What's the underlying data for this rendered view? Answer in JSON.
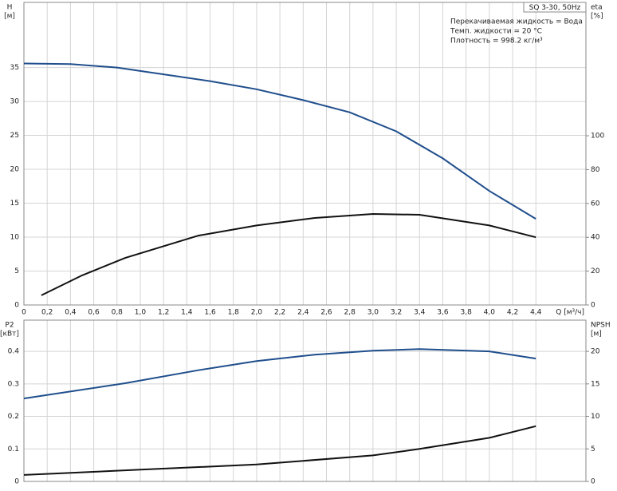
{
  "chart_data": [
    {
      "type": "line",
      "title": "SQ 3-30, 50Hz",
      "annotations": [
        "Перекачиваемая жидкость = Вода",
        "Темп. жидкости = 20 °C",
        "Плотность = 998.2 кг/м³"
      ],
      "ylabel": [
        "H",
        "[м]"
      ],
      "y2label": [
        "eta",
        "[%]"
      ],
      "xlabel": "Q [м³/ч]",
      "xlim": [
        0,
        4.83
      ],
      "ylim": [
        0,
        44.6
      ],
      "y2lim": [
        0,
        178.8
      ],
      "grid": true,
      "xticks": [
        0,
        {
          "value": 0.2,
          "label": "0,2"
        },
        {
          "value": 0.4,
          "label": "0,4"
        },
        {
          "value": 0.6,
          "label": "0,6"
        },
        {
          "value": 0.8,
          "label": "0,8"
        },
        {
          "value": 1.0,
          "label": "1,0"
        },
        {
          "value": 1.2,
          "label": "1,2"
        },
        {
          "value": 1.4,
          "label": "1,4"
        },
        {
          "value": 1.6,
          "label": "1,6"
        },
        {
          "value": 1.8,
          "label": "1,8"
        },
        {
          "value": 2.0,
          "label": "2,0"
        },
        {
          "value": 2.2,
          "label": "2,2"
        },
        {
          "value": 2.4,
          "label": "2,4"
        },
        {
          "value": 2.6,
          "label": "2,6"
        },
        {
          "value": 2.8,
          "label": "2,8"
        },
        {
          "value": 3.0,
          "label": "3,0"
        },
        {
          "value": 3.2,
          "label": "3,2"
        },
        {
          "value": 3.4,
          "label": "3,4"
        },
        {
          "value": 3.6,
          "label": "3,6"
        },
        {
          "value": 3.8,
          "label": "3,8"
        },
        {
          "value": 4.0,
          "label": "4,0"
        },
        {
          "value": 4.2,
          "label": "4,2"
        },
        {
          "value": 4.4,
          "label": "4,4"
        }
      ],
      "yticks": [
        0,
        5,
        10,
        15,
        20,
        25,
        30,
        35
      ],
      "y2ticks": [
        0,
        20,
        40,
        60,
        80,
        100
      ],
      "series": [
        {
          "name": "H",
          "color": "#1f4e8c",
          "x": [
            0,
            0.4,
            0.8,
            1.2,
            1.6,
            2.0,
            2.4,
            2.8,
            3.2,
            3.6,
            4.0,
            4.4
          ],
          "values": [
            35.6,
            35.5,
            35.0,
            34.0,
            33.0,
            31.8,
            30.2,
            28.4,
            25.6,
            21.6,
            16.8,
            12.7
          ]
        },
        {
          "name": "eta",
          "color": "#111111",
          "axis": "y2",
          "x": [
            0.15,
            0.5,
            0.87,
            1.5,
            2.0,
            2.5,
            3.0,
            3.4,
            4.0,
            4.4
          ],
          "values": [
            5.7,
            17.5,
            27.8,
            41,
            47,
            51.4,
            53.8,
            53.3,
            47,
            40
          ]
        }
      ]
    },
    {
      "type": "line",
      "ylabel": [
        "P2",
        "[кВт]"
      ],
      "y2label": [
        "NPSH",
        "[м]"
      ],
      "xlim": [
        0,
        4.83
      ],
      "ylim": [
        0,
        0.496
      ],
      "y2lim": [
        0,
        24.8
      ],
      "grid": true,
      "yticks": [
        0,
        0.1,
        0.2,
        0.3,
        0.4
      ],
      "y2ticks": [
        0,
        5,
        10,
        15,
        20
      ],
      "series": [
        {
          "name": "P2",
          "color": "#1f4e8c",
          "x": [
            0,
            0.87,
            1.5,
            2.0,
            2.5,
            3.0,
            3.4,
            4.0,
            4.4
          ],
          "values": [
            0.255,
            0.302,
            0.342,
            0.37,
            0.39,
            0.402,
            0.407,
            0.4,
            0.378
          ]
        },
        {
          "name": "NPSH",
          "color": "#111111",
          "axis": "y2",
          "x": [
            0,
            1.0,
            2.0,
            3.0,
            3.4,
            4.0,
            4.4
          ],
          "values": [
            1.0,
            1.8,
            2.6,
            4.0,
            5.0,
            6.7,
            8.5
          ]
        }
      ]
    }
  ]
}
